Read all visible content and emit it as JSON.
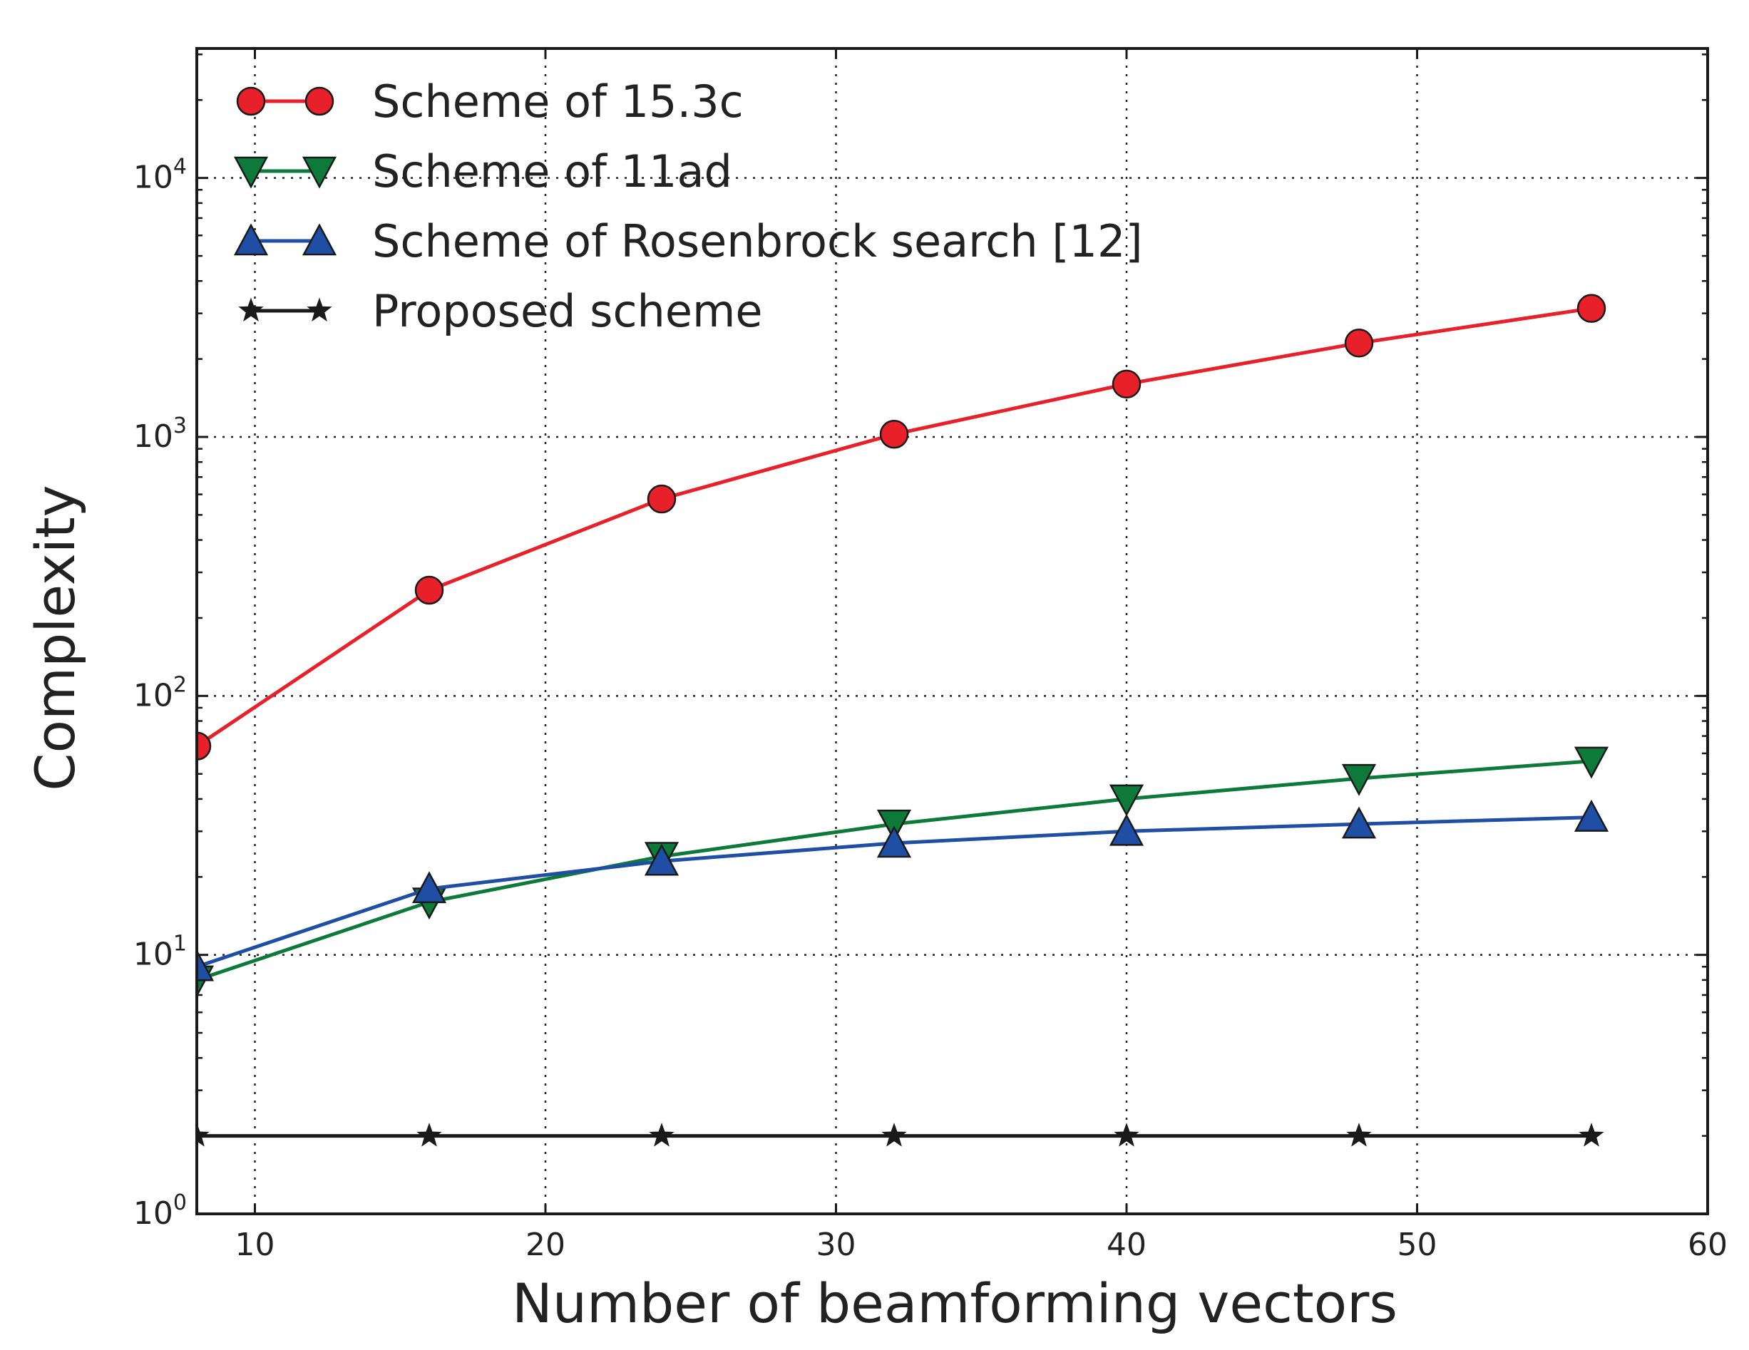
{
  "chart_data": {
    "type": "line",
    "title": "",
    "xlabel": "Number of beamforming vectors",
    "ylabel": "Complexity",
    "xscale": "linear",
    "yscale": "log",
    "xlim": [
      8,
      60
    ],
    "ylim": [
      1,
      31623
    ],
    "xticks": [
      10,
      20,
      30,
      40,
      50,
      60
    ],
    "yticks": [
      1,
      10,
      100,
      1000,
      10000
    ],
    "ytick_labels": [
      {
        "base": "10",
        "exp": "0"
      },
      {
        "base": "10",
        "exp": "1"
      },
      {
        "base": "10",
        "exp": "2"
      },
      {
        "base": "10",
        "exp": "3"
      },
      {
        "base": "10",
        "exp": "4"
      }
    ],
    "grid": true,
    "legend_position": "top-left",
    "x": [
      8,
      16,
      24,
      32,
      40,
      48,
      56
    ],
    "series": [
      {
        "name": "Scheme of 15.3c",
        "color": "#e8202a",
        "marker": "circle",
        "values": [
          64,
          256,
          576,
          1024,
          1600,
          2304,
          3136
        ]
      },
      {
        "name": "Scheme of 11ad",
        "color": "#0d7a3a",
        "marker": "triangle-down",
        "values": [
          8,
          16,
          24,
          32,
          40,
          48,
          56
        ]
      },
      {
        "name": "Scheme of Rosenbrock search [12]",
        "color": "#1f4fa5",
        "marker": "triangle-up",
        "values": [
          9,
          18,
          23,
          27,
          30,
          32,
          34
        ]
      },
      {
        "name": "Proposed scheme",
        "color": "#1a1a1a",
        "marker": "star",
        "values": [
          2,
          2,
          2,
          2,
          2,
          2,
          2
        ]
      }
    ]
  }
}
